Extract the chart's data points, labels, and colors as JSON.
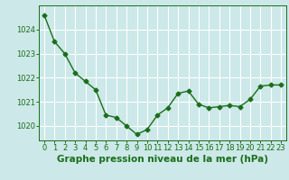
{
  "x": [
    0,
    1,
    2,
    3,
    4,
    5,
    6,
    7,
    8,
    9,
    10,
    11,
    12,
    13,
    14,
    15,
    16,
    17,
    18,
    19,
    20,
    21,
    22,
    23
  ],
  "y": [
    1024.6,
    1023.5,
    1023.0,
    1022.2,
    1021.85,
    1021.5,
    1020.45,
    1020.35,
    1020.0,
    1019.65,
    1019.85,
    1020.45,
    1020.75,
    1021.35,
    1021.45,
    1020.9,
    1020.75,
    1020.8,
    1020.85,
    1020.8,
    1021.1,
    1021.65,
    1021.7,
    1021.7
  ],
  "line_color": "#1a6e1a",
  "marker": "D",
  "markersize": 2.5,
  "linewidth": 1.0,
  "background_color": "#cce8e8",
  "grid_color": "#ffffff",
  "xlabel": "Graphe pression niveau de la mer (hPa)",
  "xlabel_color": "#1a6e1a",
  "xlabel_fontsize": 7.5,
  "tick_color": "#1a6e1a",
  "tick_fontsize": 6.0,
  "ylim": [
    1019.4,
    1025.0
  ],
  "yticks": [
    1020,
    1021,
    1022,
    1023,
    1024
  ],
  "xticks": [
    0,
    1,
    2,
    3,
    4,
    5,
    6,
    7,
    8,
    9,
    10,
    11,
    12,
    13,
    14,
    15,
    16,
    17,
    18,
    19,
    20,
    21,
    22,
    23
  ]
}
